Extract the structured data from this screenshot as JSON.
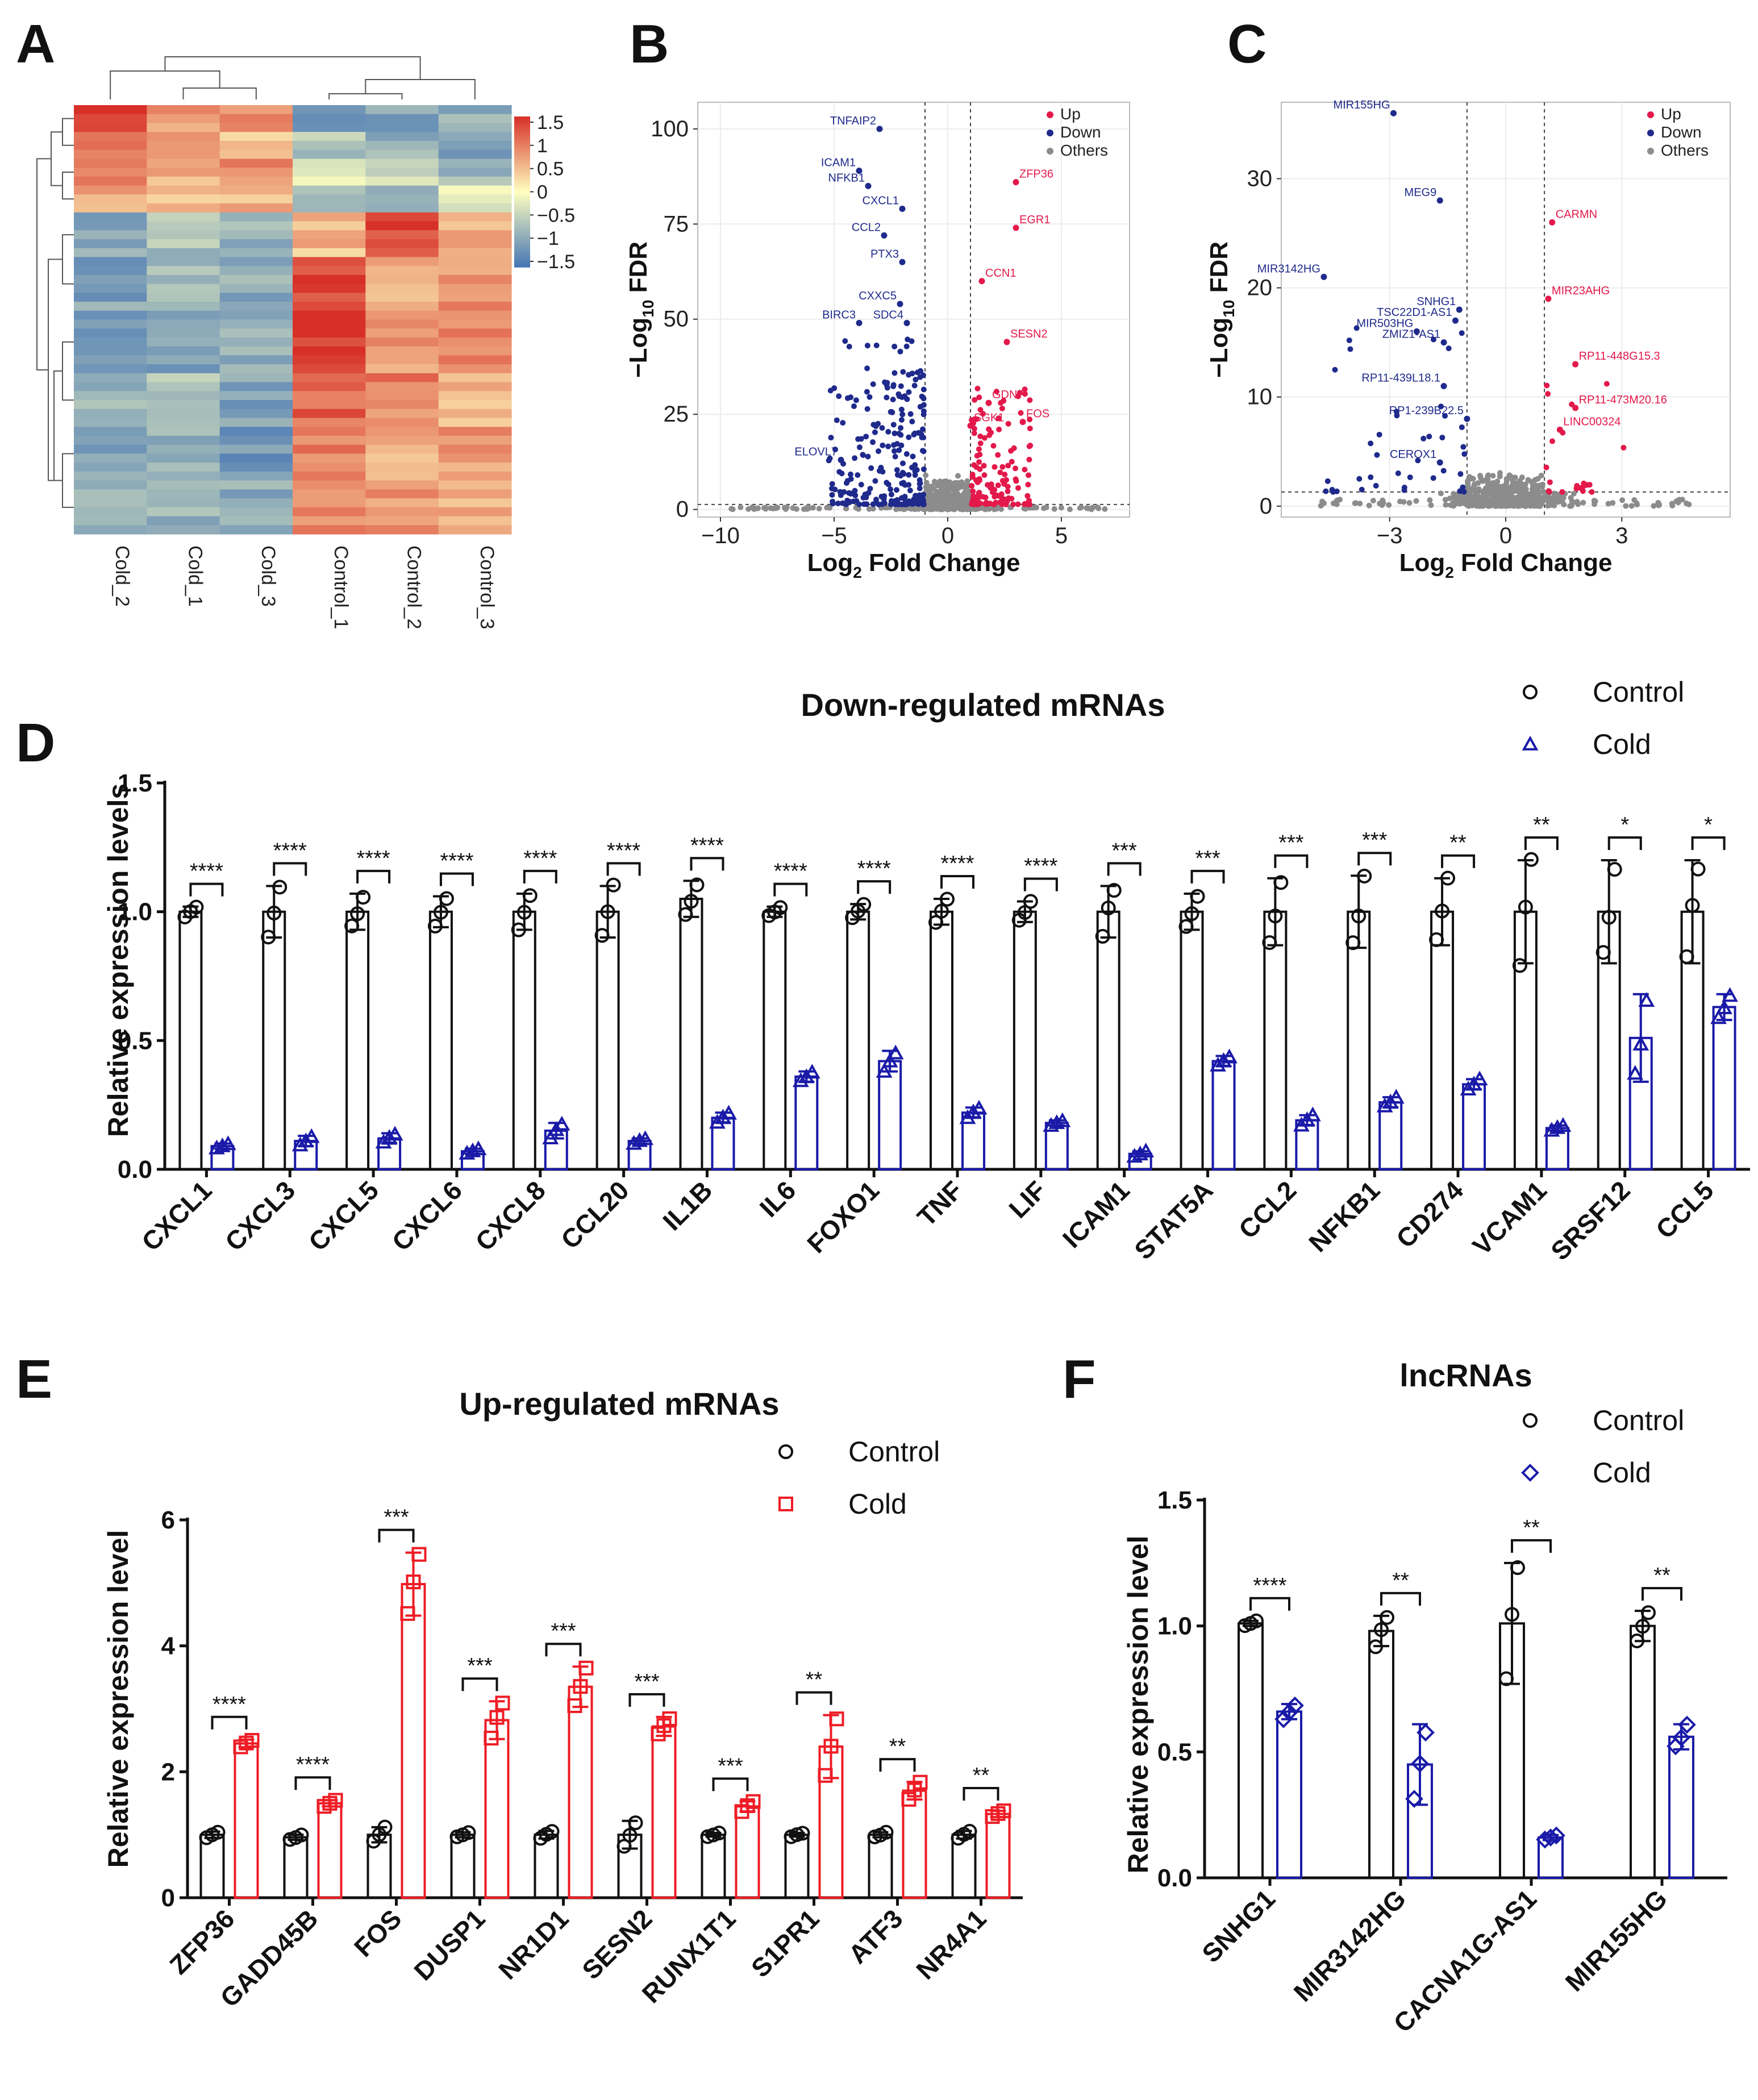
{
  "chart_data": [
    {
      "id": "A",
      "type": "heatmap",
      "panel_label": "A",
      "columns": [
        "Cold_2",
        "Cold_1",
        "Cold_3",
        "Control_1",
        "Control_2",
        "Control_3"
      ],
      "colorbar_ticks": [
        "1.5",
        "1",
        "0.5",
        "0",
        "−0.5",
        "−1",
        "−1.5"
      ],
      "colorbar_range": [
        -1.5,
        1.5
      ],
      "colors": {
        "high": "#d73027",
        "mid": "#ffffbf",
        "low": "#4575b4"
      },
      "cluster_bands": [
        {
          "rows": 3,
          "values": [
            1.4,
            0.7,
            0.9,
            -1.1,
            -1.0,
            -0.9
          ]
        },
        {
          "rows": 3,
          "values": [
            1.1,
            0.9,
            0.5,
            -0.6,
            -0.9,
            -1.1
          ]
        },
        {
          "rows": 3,
          "values": [
            0.9,
            0.6,
            0.8,
            -0.2,
            -0.4,
            -0.8
          ]
        },
        {
          "rows": 3,
          "values": [
            0.6,
            0.4,
            0.5,
            -0.7,
            -0.9,
            -0.3
          ]
        },
        {
          "rows": 5,
          "values": [
            -0.9,
            -0.7,
            -0.8,
            0.5,
            1.3,
            0.6
          ]
        },
        {
          "rows": 6,
          "values": [
            -1.0,
            -0.8,
            -0.9,
            1.4,
            0.6,
            0.8
          ]
        },
        {
          "rows": 7,
          "values": [
            -1.2,
            -1.0,
            -0.8,
            1.5,
            0.7,
            0.8
          ]
        },
        {
          "rows": 6,
          "values": [
            -0.8,
            -0.7,
            -1.0,
            1.1,
            0.9,
            0.5
          ]
        },
        {
          "rows": 6,
          "values": [
            -1.0,
            -0.9,
            -1.1,
            0.9,
            0.6,
            0.7
          ]
        },
        {
          "rows": 6,
          "values": [
            -0.7,
            -0.8,
            -0.9,
            0.8,
            0.8,
            0.6
          ]
        }
      ]
    },
    {
      "id": "B",
      "type": "scatter",
      "panel_label": "B",
      "xlabel": "Log",
      "xlabel_sub": "2",
      "xlabel_rest": " Fold Change",
      "ylabel": "−Log",
      "ylabel_sub": "10",
      "ylabel_rest": " FDR",
      "xlim": [
        -11,
        8
      ],
      "ylim": [
        -2,
        107
      ],
      "xticks": [
        -10,
        -5,
        0,
        5
      ],
      "yticks": [
        0,
        25,
        50,
        75,
        100
      ],
      "xtick_labels": [
        "−10",
        "−5",
        "0",
        "5"
      ],
      "ytick_labels": [
        "0",
        "25",
        "50",
        "75",
        "100"
      ],
      "fc_thresholds": [
        -1,
        1
      ],
      "fdr_threshold": 1.3,
      "legend": [
        {
          "label": "Up",
          "color": "#e3194b"
        },
        {
          "label": "Down",
          "color": "#1f2a8c"
        },
        {
          "label": "Others",
          "color": "#8c8c8c"
        }
      ],
      "labeled_points": [
        {
          "gene": "TNFAIP2",
          "x": -3.0,
          "y": 100,
          "group": "down"
        },
        {
          "gene": "ICAM1",
          "x": -3.9,
          "y": 89,
          "group": "down"
        },
        {
          "gene": "NFKB1",
          "x": -3.5,
          "y": 85,
          "group": "down"
        },
        {
          "gene": "CXCL1",
          "x": -2.0,
          "y": 79,
          "group": "down"
        },
        {
          "gene": "CCL2",
          "x": -2.8,
          "y": 72,
          "group": "down"
        },
        {
          "gene": "PTX3",
          "x": -2.0,
          "y": 65,
          "group": "down"
        },
        {
          "gene": "CXXC5",
          "x": -2.1,
          "y": 54,
          "group": "down"
        },
        {
          "gene": "BIRC3",
          "x": -3.9,
          "y": 49,
          "group": "down"
        },
        {
          "gene": "SDC4",
          "x": -1.8,
          "y": 49,
          "group": "down"
        },
        {
          "gene": "ELOVL7",
          "x": -4.7,
          "y": 13,
          "group": "down"
        },
        {
          "gene": "ZFP36",
          "x": 3.0,
          "y": 86,
          "group": "up"
        },
        {
          "gene": "EGR1",
          "x": 3.0,
          "y": 74,
          "group": "up"
        },
        {
          "gene": "CCN1",
          "x": 1.5,
          "y": 60,
          "group": "up"
        },
        {
          "gene": "SESN2",
          "x": 2.6,
          "y": 44,
          "group": "up"
        },
        {
          "gene": "GDNF",
          "x": 1.8,
          "y": 28,
          "group": "up"
        },
        {
          "gene": "FOS",
          "x": 3.3,
          "y": 23,
          "group": "up"
        },
        {
          "gene": "SGK1",
          "x": 1.0,
          "y": 22,
          "group": "up"
        }
      ]
    },
    {
      "id": "C",
      "type": "scatter",
      "panel_label": "C",
      "xlabel": "Log",
      "xlabel_sub": "2",
      "xlabel_rest": " Fold Change",
      "ylabel": "−Log",
      "ylabel_sub": "10",
      "ylabel_rest": " FDR",
      "xlim": [
        -5.8,
        5.8
      ],
      "ylim": [
        -1,
        37
      ],
      "xticks": [
        -3,
        0,
        3
      ],
      "yticks": [
        0,
        10,
        20,
        30
      ],
      "xtick_labels": [
        "−3",
        "0",
        "3"
      ],
      "ytick_labels": [
        "0",
        "10",
        "20",
        "30"
      ],
      "fc_thresholds": [
        -1,
        1
      ],
      "fdr_threshold": 1.3,
      "legend": [
        {
          "label": "Up",
          "color": "#e3194b"
        },
        {
          "label": "Down",
          "color": "#1f2a8c"
        },
        {
          "label": "Others",
          "color": "#8c8c8c"
        }
      ],
      "labeled_points": [
        {
          "gene": "MIR155HG",
          "x": -2.9,
          "y": 36,
          "group": "down"
        },
        {
          "gene": "MEG9",
          "x": -1.7,
          "y": 28,
          "group": "down"
        },
        {
          "gene": "MIR3142HG",
          "x": -4.7,
          "y": 21,
          "group": "down"
        },
        {
          "gene": "SNHG1",
          "x": -1.2,
          "y": 18,
          "group": "down"
        },
        {
          "gene": "TSC22D1-AS1",
          "x": -1.3,
          "y": 17,
          "group": "down"
        },
        {
          "gene": "MIR503HG",
          "x": -2.3,
          "y": 16,
          "group": "down"
        },
        {
          "gene": "ZMIZ1-AS1",
          "x": -1.6,
          "y": 15,
          "group": "down"
        },
        {
          "gene": "RP11-439L18.1",
          "x": -1.6,
          "y": 11,
          "group": "down"
        },
        {
          "gene": "RP1-239B22.5",
          "x": -1.0,
          "y": 8,
          "group": "down"
        },
        {
          "gene": "CEROX1",
          "x": -1.7,
          "y": 4,
          "group": "down"
        },
        {
          "gene": "CARMN",
          "x": 1.2,
          "y": 26,
          "group": "up"
        },
        {
          "gene": "MIR23AHG",
          "x": 1.1,
          "y": 19,
          "group": "up"
        },
        {
          "gene": "RP11-448G15.3",
          "x": 1.8,
          "y": 13,
          "group": "up"
        },
        {
          "gene": "RP11-473M20.16",
          "x": 1.8,
          "y": 9,
          "group": "up"
        },
        {
          "gene": "LINC00324",
          "x": 1.4,
          "y": 7,
          "group": "up"
        }
      ]
    },
    {
      "id": "D",
      "type": "bar",
      "panel_label": "D",
      "title": "Down-regulated mRNAs",
      "ylabel": "Relative expression levels",
      "ylim": [
        0,
        1.5
      ],
      "yticks": [
        0,
        0.5,
        1.0,
        1.5
      ],
      "ytick_labels": [
        "0.0",
        "0.5",
        "1.0",
        "1.5"
      ],
      "categories": [
        "CXCL1",
        "CXCL3",
        "CXCL5",
        "CXCL6",
        "CXCL8",
        "CCL20",
        "IL1B",
        "IL6",
        "FOXO1",
        "TNF",
        "LIF",
        "ICAM1",
        "STAT5A",
        "CCL2",
        "NFKB1",
        "CD274",
        "VCAM1",
        "SRSF12",
        "CCL5"
      ],
      "series": [
        {
          "name": "Control",
          "color": "#111111",
          "marker": "circle",
          "values": [
            1.0,
            1.0,
            1.0,
            1.0,
            1.0,
            1.0,
            1.05,
            1.0,
            1.0,
            1.0,
            1.0,
            1.0,
            1.0,
            1.0,
            1.0,
            1.0,
            1.0,
            1.0,
            1.0
          ],
          "errors": [
            0.02,
            0.1,
            0.07,
            0.06,
            0.07,
            0.1,
            0.07,
            0.02,
            0.03,
            0.05,
            0.04,
            0.1,
            0.07,
            0.13,
            0.14,
            0.13,
            0.2,
            0.2,
            0.2
          ]
        },
        {
          "name": "Cold",
          "color": "#1a1aa8",
          "marker": "triangle",
          "values": [
            0.09,
            0.11,
            0.12,
            0.07,
            0.15,
            0.11,
            0.2,
            0.36,
            0.42,
            0.22,
            0.18,
            0.06,
            0.42,
            0.19,
            0.26,
            0.33,
            0.16,
            0.51,
            0.63
          ],
          "errors": [
            0.01,
            0.02,
            0.02,
            0.01,
            0.03,
            0.01,
            0.02,
            0.02,
            0.04,
            0.02,
            0.01,
            0.01,
            0.02,
            0.02,
            0.02,
            0.02,
            0.01,
            0.17,
            0.05
          ]
        }
      ],
      "significance": [
        "****",
        "****",
        "****",
        "****",
        "****",
        "****",
        "****",
        "****",
        "****",
        "****",
        "****",
        "***",
        "***",
        "***",
        "***",
        "**",
        "**",
        "*",
        "*"
      ]
    },
    {
      "id": "E",
      "type": "bar",
      "panel_label": "E",
      "title": "Up-regulated mRNAs",
      "ylabel": "Relative expression level",
      "ylim": [
        0,
        6
      ],
      "yticks": [
        0,
        2,
        4,
        6
      ],
      "ytick_labels": [
        "0",
        "2",
        "4",
        "6"
      ],
      "categories": [
        "ZFP36",
        "GADD45B",
        "FOS",
        "DUSP1",
        "NR1D1",
        "SESN2",
        "RUNX1T1",
        "S1PR1",
        "ATF3",
        "NR4A1"
      ],
      "series": [
        {
          "name": "Control",
          "color": "#111111",
          "marker": "circle",
          "values": [
            1.0,
            0.96,
            1.0,
            1.0,
            1.0,
            1.0,
            1.0,
            1.0,
            1.0,
            1.0
          ],
          "errors": [
            0.05,
            0.04,
            0.12,
            0.04,
            0.06,
            0.22,
            0.03,
            0.03,
            0.04,
            0.06
          ]
        },
        {
          "name": "Cold",
          "color": "#ee1c25",
          "marker": "square",
          "values": [
            2.45,
            1.5,
            4.98,
            2.82,
            3.35,
            2.72,
            1.45,
            2.4,
            1.7,
            1.33
          ],
          "errors": [
            0.06,
            0.05,
            0.5,
            0.3,
            0.32,
            0.15,
            0.08,
            0.5,
            0.14,
            0.05
          ]
        }
      ],
      "significance": [
        "****",
        "****",
        "***",
        "***",
        "***",
        "***",
        "***",
        "**",
        "**",
        "**"
      ]
    },
    {
      "id": "F",
      "type": "bar",
      "panel_label": "F",
      "title": "lncRNAs",
      "ylabel": "Relative expression level",
      "ylim": [
        0,
        1.5
      ],
      "yticks": [
        0,
        0.5,
        1.0,
        1.5
      ],
      "ytick_labels": [
        "0.0",
        "0.5",
        "1.0",
        "1.5"
      ],
      "categories": [
        "SNHG1",
        "MIR3142HG",
        "CACNA1G-AS1",
        "MIR155HG"
      ],
      "series": [
        {
          "name": "Control",
          "color": "#111111",
          "marker": "circle",
          "values": [
            1.01,
            0.98,
            1.01,
            1.0
          ],
          "errors": [
            0.01,
            0.06,
            0.24,
            0.06
          ]
        },
        {
          "name": "Cold",
          "color": "#1a1aa8",
          "marker": "diamond",
          "values": [
            0.66,
            0.45,
            0.16,
            0.56
          ],
          "errors": [
            0.03,
            0.16,
            0.01,
            0.05
          ]
        }
      ],
      "significance": [
        "****",
        "**",
        "**",
        "**"
      ]
    }
  ]
}
